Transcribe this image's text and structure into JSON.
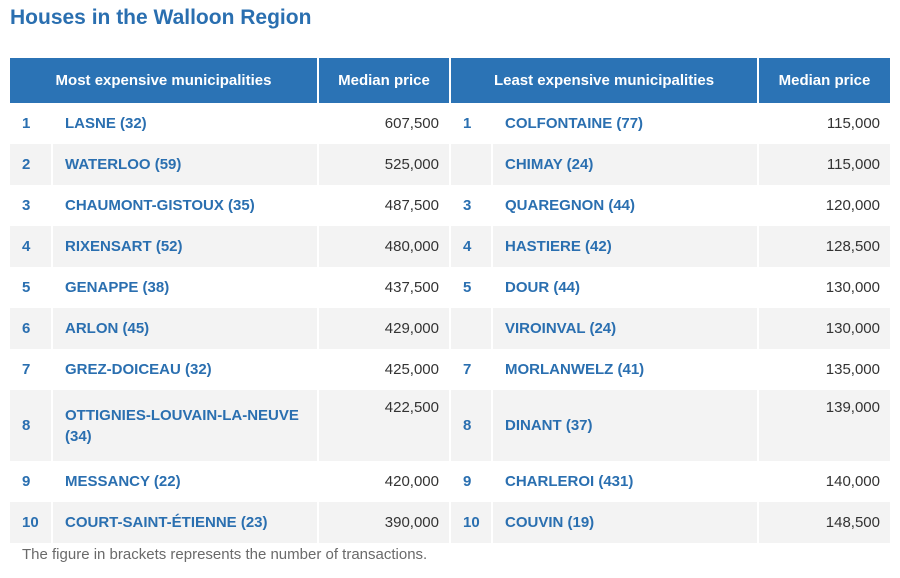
{
  "title": "Houses in the Walloon Region",
  "headers": {
    "most_expensive": "Most expensive municipalities",
    "median_price_1": "Median price",
    "least_expensive": "Least expensive municipalities",
    "median_price_2": "Median price"
  },
  "rows": [
    {
      "rank_l": "1",
      "name_l": "LASNE (32)",
      "price_l": "607,500",
      "rank_r": "1",
      "name_r": "COLFONTAINE (77)",
      "price_r": "115,000"
    },
    {
      "rank_l": "2",
      "name_l": "WATERLOO (59)",
      "price_l": "525,000",
      "rank_r": "",
      "name_r": "CHIMAY (24)",
      "price_r": "115,000"
    },
    {
      "rank_l": "3",
      "name_l": "CHAUMONT-GISTOUX (35)",
      "price_l": "487,500",
      "rank_r": "3",
      "name_r": "QUAREGNON (44)",
      "price_r": "120,000"
    },
    {
      "rank_l": "4",
      "name_l": "RIXENSART (52)",
      "price_l": "480,000",
      "rank_r": "4",
      "name_r": "HASTIERE (42)",
      "price_r": "128,500"
    },
    {
      "rank_l": "5",
      "name_l": "GENAPPE (38)",
      "price_l": "437,500",
      "rank_r": "5",
      "name_r": "DOUR (44)",
      "price_r": "130,000"
    },
    {
      "rank_l": "6",
      "name_l": "ARLON (45)",
      "price_l": "429,000",
      "rank_r": "",
      "name_r": "VIROINVAL (24)",
      "price_r": "130,000"
    },
    {
      "rank_l": "7",
      "name_l": "GREZ-DOICEAU (32)",
      "price_l": "425,000",
      "rank_r": "7",
      "name_r": "MORLANWELZ (41)",
      "price_r": "135,000"
    },
    {
      "rank_l": "8",
      "name_l": "OTTIGNIES-LOUVAIN-LA-NEUVE (34)",
      "price_l": "422,500",
      "rank_r": "8",
      "name_r": "DINANT (37)",
      "price_r": "139,000"
    },
    {
      "rank_l": "9",
      "name_l": "MESSANCY (22)",
      "price_l": "420,000",
      "rank_r": "9",
      "name_r": "CHARLEROI (431)",
      "price_r": "140,000"
    },
    {
      "rank_l": "10",
      "name_l": "COURT-SAINT-ÉTIENNE (23)",
      "price_l": "390,000",
      "rank_r": "10",
      "name_r": "COUVIN (19)",
      "price_r": "148,500"
    }
  ],
  "footnote": "The figure in brackets represents the number of transactions.",
  "colors": {
    "header_bg": "#2b73b5",
    "accent_text": "#2a6fb0",
    "stripe": "#f3f3f3"
  }
}
